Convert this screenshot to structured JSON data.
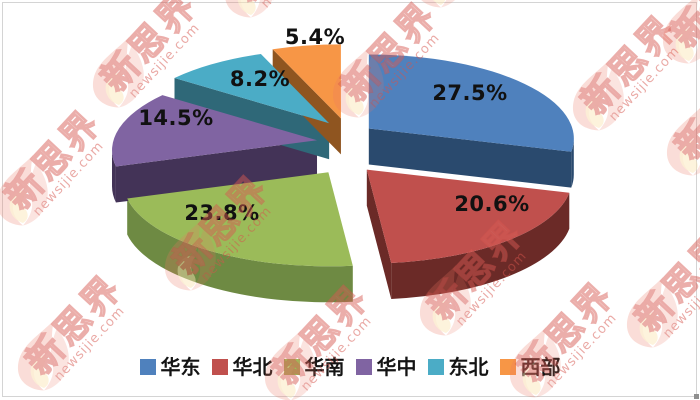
{
  "chart_data": {
    "type": "pie",
    "style": "3d-exploded-pie",
    "unit": "%",
    "series": [
      {
        "label": "华东",
        "value": 27.5,
        "display": "27.5%",
        "color": "#4F81BD",
        "side_color": "#2A4A6E"
      },
      {
        "label": "华北",
        "value": 20.6,
        "display": "20.6%",
        "color": "#C0504D",
        "side_color": "#6B2A27"
      },
      {
        "label": "华南",
        "value": 23.8,
        "display": "23.8%",
        "color": "#9BBB59",
        "side_color": "#6E8A43"
      },
      {
        "label": "华中",
        "value": 14.5,
        "display": "14.5%",
        "color": "#8064A2",
        "side_color": "#433357"
      },
      {
        "label": "东北",
        "value": 8.2,
        "display": "8.2%",
        "color": "#4BACC6",
        "side_color": "#2F6878"
      },
      {
        "label": "西部",
        "value": 5.4,
        "display": "5.4%",
        "color": "#F79646",
        "side_color": "#8F5520"
      }
    ],
    "title": "",
    "legend_position": "bottom",
    "label_color": "#111111",
    "start_angle_deg": 0,
    "clockwise": true
  },
  "watermark": {
    "brand": "新思界",
    "domain": "newsijie.com",
    "color": "#D5544C"
  },
  "frame": {
    "background": "#FFFFFF",
    "border_color": "#D4D4D4"
  }
}
